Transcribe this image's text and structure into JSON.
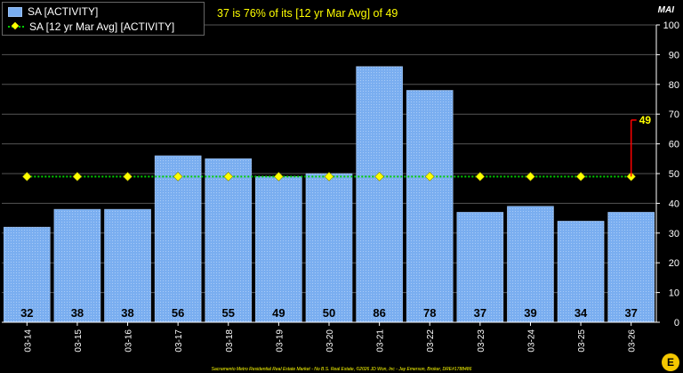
{
  "headline": "37 is 76% of its [12 yr Mar Avg] of 49",
  "axis_unit": "MAI",
  "footer": "Sacramento Metro Residential Real Estate Market - No B.S. Real Estate, ©2026 JD Won, Inc - Jay Emerson, Broker, DRE#1788486",
  "logo_letter": "E",
  "colors": {
    "bar": "#7aaef0",
    "avg_line": "#00d000",
    "avg_marker": "#ffff00",
    "callout": "#ff0000",
    "callout_text": "#ffff00"
  },
  "chart_data": {
    "type": "bar",
    "categories": [
      "03-14",
      "03-15",
      "03-16",
      "03-17",
      "03-18",
      "03-19",
      "03-20",
      "03-21",
      "03-22",
      "03-23",
      "03-24",
      "03-25",
      "03-26"
    ],
    "series": [
      {
        "name": "SA [ACTIVITY]",
        "type": "bar",
        "values": [
          32,
          38,
          38,
          56,
          55,
          49,
          50,
          86,
          78,
          37,
          39,
          34,
          37
        ]
      },
      {
        "name": "SA [12 yr Mar Avg] [ACTIVITY]",
        "type": "line",
        "values": [
          49,
          49,
          49,
          49,
          49,
          49,
          49,
          49,
          49,
          49,
          49,
          49,
          49
        ]
      }
    ],
    "data_labels": [
      "32",
      "38",
      "38",
      "56",
      "55",
      "49",
      "50",
      "86",
      "78",
      "37",
      "39",
      "34",
      "37"
    ],
    "callout": {
      "value": 49,
      "label": "49"
    },
    "ylim": [
      0,
      100
    ],
    "yticks": [
      0,
      10,
      20,
      30,
      40,
      50,
      60,
      70,
      80,
      90,
      100
    ],
    "y_axis_position": "right",
    "grid": true,
    "legend": "top-left"
  }
}
